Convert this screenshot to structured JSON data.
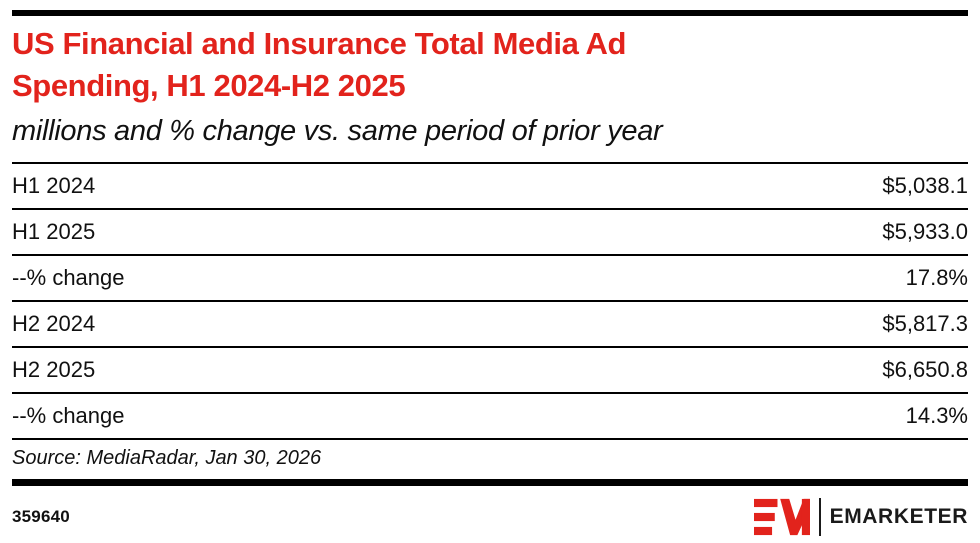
{
  "header": {
    "title": "US Financial and Insurance Total Media Ad\nSpending, H1 2024-H2 2025",
    "subtitle": "millions and % change vs. same period of prior year"
  },
  "chart_data": {
    "type": "table",
    "title": "US Financial and Insurance Total Media Ad Spending, H1 2024-H2 2025",
    "subtitle": "millions and % change vs. same period of prior year",
    "columns": [
      "period",
      "value"
    ],
    "rows": [
      {
        "label": "H1 2024",
        "value": "$5,038.1"
      },
      {
        "label": "H1 2025",
        "value": "$5,933.0"
      },
      {
        "label": "--% change",
        "value": "17.8%"
      },
      {
        "label": "H2 2024",
        "value": "$5,817.3"
      },
      {
        "label": "H2 2025",
        "value": "$6,650.8"
      },
      {
        "label": "--% change",
        "value": "14.3%"
      }
    ],
    "numeric": {
      "h1_2024_millions": 5038.1,
      "h1_2025_millions": 5933.0,
      "h1_pct_change": 17.8,
      "h2_2024_millions": 5817.3,
      "h2_2025_millions": 6650.8,
      "h2_pct_change": 14.3
    }
  },
  "footer": {
    "source": "Source: MediaRadar, Jan 30, 2026",
    "chart_id": "359640",
    "logo": {
      "monogram": "EM",
      "wordmark": "EMARKETER"
    }
  },
  "colors": {
    "accent_red": "#e2231c",
    "text_black": "#111111",
    "rule_black": "#000000"
  }
}
